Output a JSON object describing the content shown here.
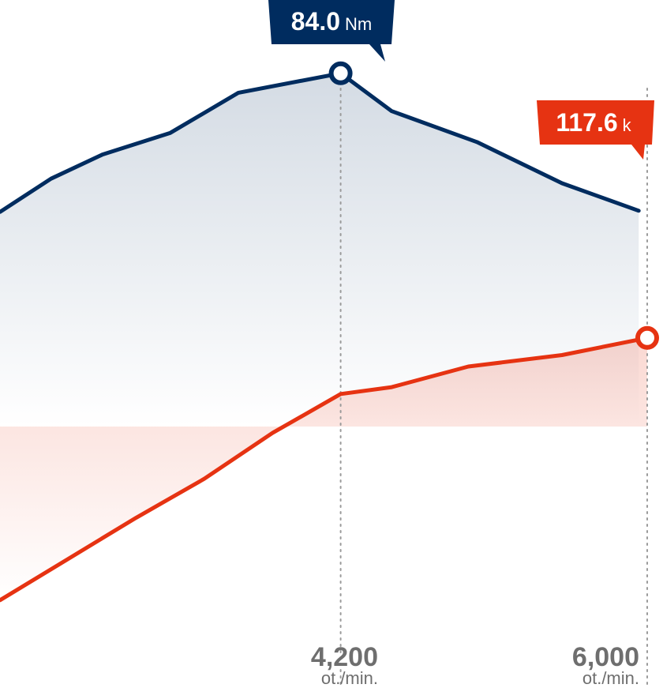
{
  "colors": {
    "torque": "#002c5f",
    "power": "#e63312",
    "marker_line": "#9a9a9a",
    "tick_text": "#6e6e6e"
  },
  "chart_data": {
    "type": "line",
    "x_range": [
      2200,
      6000
    ],
    "y_range": [
      30,
      90
    ],
    "series": [
      {
        "key": "torque",
        "points": [
          [
            2200,
            71.5
          ],
          [
            2500,
            74.4
          ],
          [
            2800,
            76.5
          ],
          [
            3200,
            78.4
          ],
          [
            3600,
            81.9
          ],
          [
            4200,
            83.6
          ],
          [
            4500,
            80.3
          ],
          [
            5000,
            77.6
          ],
          [
            5500,
            74.0
          ],
          [
            5950,
            71.6
          ]
        ],
        "peak": {
          "x": 4200,
          "label": "84.0",
          "unit": "Nm"
        }
      },
      {
        "key": "power",
        "points": [
          [
            2200,
            37.6
          ],
          [
            2600,
            41.2
          ],
          [
            3000,
            44.8
          ],
          [
            3400,
            48.2
          ],
          [
            3800,
            52.2
          ],
          [
            4200,
            55.6
          ],
          [
            4500,
            56.2
          ],
          [
            4950,
            58.0
          ],
          [
            5500,
            59.0
          ],
          [
            6000,
            60.5
          ]
        ],
        "peak": {
          "x": 6000,
          "label": "117.6",
          "unit": "k"
        }
      }
    ],
    "x_markers": [
      {
        "x": 4200,
        "label": "4,200",
        "unit": "ot./min."
      },
      {
        "x": 6000,
        "label": "6,000",
        "unit": "ot./min."
      }
    ]
  }
}
